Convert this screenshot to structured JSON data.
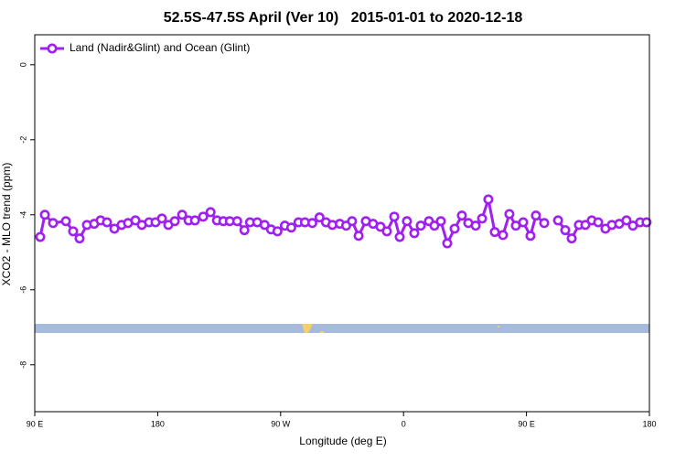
{
  "chart_data": {
    "type": "line",
    "title": "52.5S-47.5S April (Ver 10)   2015-01-01 to 2020-12-18",
    "xlabel": "Longitude (deg E)",
    "ylabel": "XCO2 - MLO trend (ppm)",
    "xlim": [
      90,
      540
    ],
    "ylim": [
      -9.25,
      0.8
    ],
    "xticks": [
      {
        "value": 90,
        "label": "90 E"
      },
      180,
      {
        "value": 270,
        "label": "90 W"
      },
      {
        "value": 360,
        "label": "0"
      },
      {
        "value": 450,
        "label": "90 E"
      },
      {
        "value": 540,
        "label": "180"
      }
    ],
    "yticks": [
      0,
      -2,
      -4,
      -6,
      -8
    ],
    "legend": "top-left",
    "x": [
      94.0,
      97.4,
      103.4,
      112.8,
      118.1,
      122.8,
      128.2,
      133.5,
      138.2,
      142.9,
      148.3,
      153.6,
      158.3,
      163.7,
      168.4,
      173.7,
      178.4,
      183.1,
      187.8,
      192.5,
      197.9,
      202.6,
      207.3,
      213.3,
      218.7,
      223.4,
      228.1,
      232.8,
      238.2,
      243.5,
      247.6,
      252.9,
      258.3,
      263.0,
      267.7,
      273.1,
      277.8,
      283.1,
      287.8,
      293.2,
      298.5,
      303.2,
      307.9,
      313.3,
      318.0,
      322.3,
      327.1,
      332.4,
      337.7,
      343.1,
      347.8,
      353.2,
      357.2,
      362.5,
      367.9,
      372.6,
      378.6,
      382.6,
      387.3,
      392.0,
      397.4,
      402.7,
      407.4,
      412.8,
      417.5,
      422.1,
      426.8,
      432.8,
      437.5,
      442.2,
      447.6,
      452.9,
      456.9,
      463.0,
      467.7,
      473.1,
      478.4,
      483.1,
      488.4,
      493.1,
      497.8,
      502.5,
      507.8,
      512.5,
      517.9,
      523.2,
      527.9,
      533.2,
      537.9
    ],
    "series": [
      {
        "name": "Land (Nadir&Glint) and Ocean (Glint)",
        "color": "#a020f0",
        "values": [
          -4.59,
          -4.0,
          -4.22,
          -4.17,
          -4.44,
          -4.63,
          -4.27,
          -4.24,
          -4.15,
          -4.2,
          -4.37,
          -4.27,
          -4.22,
          -4.15,
          -4.27,
          -4.2,
          -4.2,
          -4.1,
          -4.27,
          -4.17,
          -4.0,
          -4.15,
          -4.15,
          -4.05,
          -3.93,
          -4.15,
          -4.17,
          -4.17,
          -4.17,
          -4.41,
          -4.2,
          -4.2,
          -4.27,
          -4.39,
          -4.44,
          -4.29,
          -4.34,
          -4.2,
          -4.2,
          -4.22,
          -4.07,
          -4.2,
          -4.27,
          -4.24,
          -4.29,
          -4.17,
          -4.56,
          -4.17,
          -4.24,
          -4.32,
          -4.44,
          -4.05,
          -4.59,
          -4.17,
          -4.49,
          -4.29,
          -4.17,
          -4.29,
          -4.17,
          -4.76,
          -4.37,
          -4.02,
          -4.22,
          -4.29,
          -4.1,
          -3.59,
          -4.46,
          -4.54,
          -3.98,
          -4.29,
          -4.2,
          -4.56,
          -4.02,
          -4.22,
          null,
          -4.15,
          -4.41,
          -4.63,
          -4.27,
          -4.27,
          -4.15,
          -4.2,
          -4.37,
          -4.27,
          -4.24,
          -4.15,
          -4.29,
          -4.2,
          -4.2
        ]
      }
    ]
  }
}
